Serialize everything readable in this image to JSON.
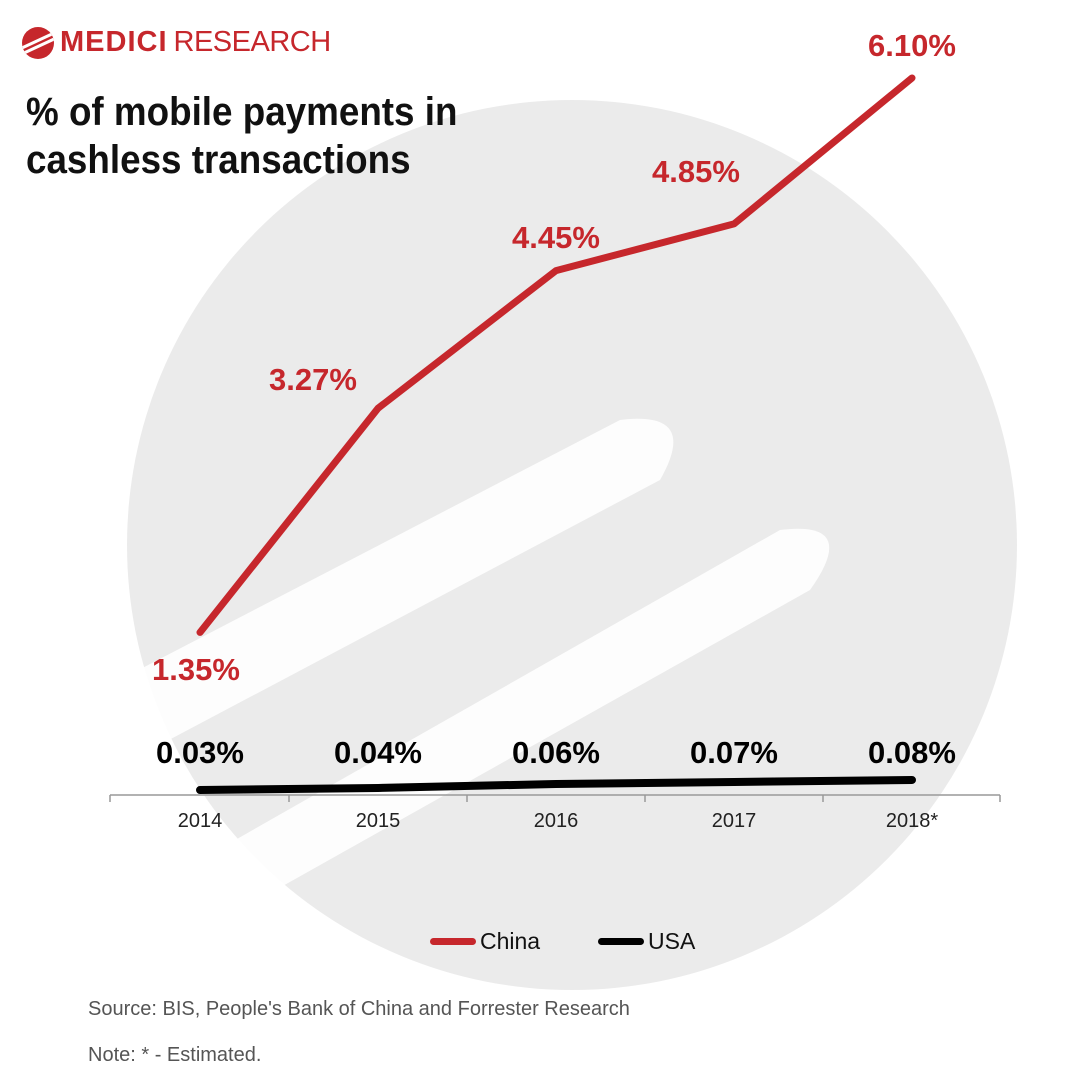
{
  "logo": {
    "brand": "MEDICI",
    "suffix": "RESEARCH"
  },
  "title": "% of mobile payments in cashless transactions",
  "chart_data": {
    "type": "line",
    "title": "% of mobile payments in cashless transactions",
    "x": [
      "2014",
      "2015",
      "2016",
      "2017",
      "2018*"
    ],
    "series": [
      {
        "name": "China",
        "color": "#c6272c",
        "values": [
          1.35,
          3.27,
          4.45,
          4.85,
          6.1
        ],
        "labels": [
          "1.35%",
          "3.27%",
          "4.45%",
          "4.85%",
          "6.10%"
        ]
      },
      {
        "name": "USA",
        "color": "#000000",
        "values": [
          0.03,
          0.04,
          0.06,
          0.07,
          0.08
        ],
        "labels": [
          "0.03%",
          "0.04%",
          "0.06%",
          "0.07%",
          "0.08%"
        ]
      }
    ],
    "xlabel": "",
    "ylabel": "",
    "ylim": [
      0,
      6.1
    ],
    "grid": false,
    "legend": "bottom-center"
  },
  "source": "Source: BIS,  People's Bank of China and Forrester Research",
  "note": "Note: * - Estimated."
}
